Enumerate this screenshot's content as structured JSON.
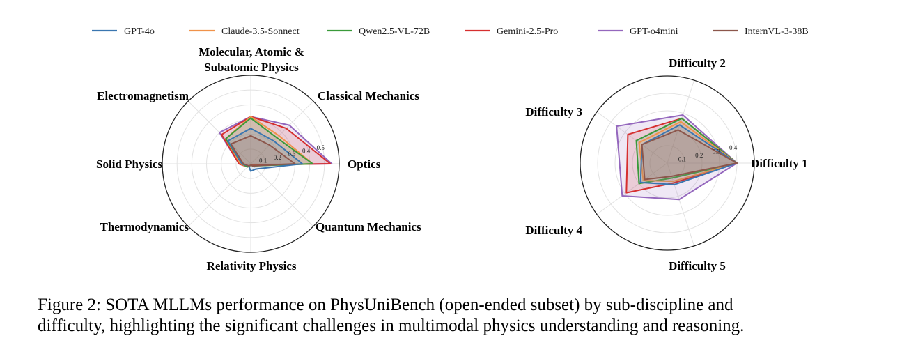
{
  "colors": {
    "GPT-4o": "#3a76b0",
    "Claude-3.5-Sonnect": "#f0924a",
    "Qwen2.5-VL-72B": "#3a9a3a",
    "Gemini-2.5-Pro": "#d62f2f",
    "GPT-o4mini": "#9467bd",
    "InternVL-3-38B": "#8c564b"
  },
  "legend": [
    "GPT-4o",
    "Claude-3.5-Sonnect",
    "Qwen2.5-VL-72B",
    "Gemini-2.5-Pro",
    "GPT-o4mini",
    "InternVL-3-38B"
  ],
  "caption": {
    "line1": "Figure 2: SOTA MLLMs performance on PhysUniBench (open-ended subset) by sub-discipline and",
    "line2": "difficulty, highlighting the significant challenges in multimodal physics understanding and reasoning."
  },
  "chart_data": [
    {
      "type": "radar",
      "axes": [
        "Optics",
        "Classical Mechanics",
        "Molecular, Atomic & Subatomic Physics",
        "Electromagnetism",
        "Solid Physics",
        "Thermodynamics",
        "Relativity Physics",
        "Quantum Mechanics"
      ],
      "rticks": [
        "0.1",
        "0.2",
        "0.3",
        "0.4",
        "0.5"
      ],
      "rmax": 0.6,
      "series": [
        {
          "name": "GPT-4o",
          "values": [
            0.35,
            0.22,
            0.24,
            0.22,
            0.06,
            0.02,
            0.05,
            0.05
          ]
        },
        {
          "name": "Claude-3.5-Sonnect",
          "values": [
            0.42,
            0.27,
            0.32,
            0.24,
            0.07,
            0.03,
            0.01,
            0.02
          ]
        },
        {
          "name": "Qwen2.5-VL-72B",
          "values": [
            0.42,
            0.25,
            0.31,
            0.24,
            0.06,
            0.03,
            0.01,
            0.02
          ]
        },
        {
          "name": "Gemini-2.5-Pro",
          "values": [
            0.54,
            0.34,
            0.32,
            0.28,
            0.08,
            0.03,
            0.01,
            0.01
          ]
        },
        {
          "name": "GPT-o4mini",
          "values": [
            0.55,
            0.37,
            0.32,
            0.3,
            0.08,
            0.03,
            0.01,
            0.01
          ]
        },
        {
          "name": "InternVL-3-38B",
          "values": [
            0.3,
            0.18,
            0.19,
            0.19,
            0.05,
            0.02,
            0.01,
            0.02
          ]
        }
      ]
    },
    {
      "type": "radar",
      "axes": [
        "Difficulty 1",
        "Difficulty 2",
        "Difficulty 3",
        "Difficulty 4",
        "Difficulty 5"
      ],
      "rticks": [
        "0.1",
        "0.2",
        "0.3",
        "0.4"
      ],
      "rmax": 0.5,
      "series": [
        {
          "name": "GPT-4o",
          "values": [
            0.4,
            0.23,
            0.18,
            0.19,
            0.13
          ]
        },
        {
          "name": "Claude-3.5-Sonnect",
          "values": [
            0.4,
            0.25,
            0.2,
            0.17,
            0.11
          ]
        },
        {
          "name": "Qwen2.5-VL-72B",
          "values": [
            0.4,
            0.27,
            0.22,
            0.2,
            0.09
          ]
        },
        {
          "name": "Gemini-2.5-Pro",
          "values": [
            0.4,
            0.27,
            0.28,
            0.29,
            0.12
          ]
        },
        {
          "name": "GPT-o4mini",
          "values": [
            0.4,
            0.29,
            0.36,
            0.32,
            0.22
          ]
        },
        {
          "name": "InternVL-3-38B",
          "values": [
            0.4,
            0.2,
            0.18,
            0.16,
            0.08
          ]
        }
      ]
    }
  ]
}
